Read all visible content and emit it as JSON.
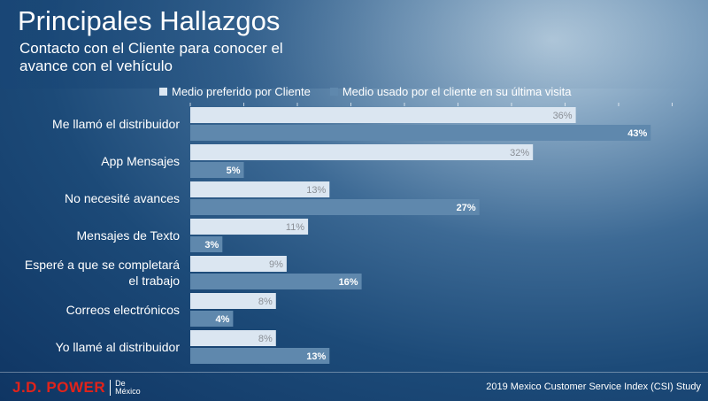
{
  "header": {
    "title": "Principales Hallazgos",
    "subtitle": "Contacto con el Cliente para conocer el avance con el vehículo"
  },
  "footer": {
    "logo_main": "J.D. POWER",
    "logo_sub_1": "De",
    "logo_sub_2": "México",
    "study": "2019 Mexico Customer Service Index (CSI) Study"
  },
  "colors": {
    "series_1": "#dbe6f1",
    "series_2": "#5f88ad",
    "label_series_1": "#8a8f96",
    "label_series_2": "#ffffff"
  },
  "chart_data": {
    "type": "bar",
    "orientation": "horizontal",
    "title": "Principales Hallazgos",
    "subtitle": "Contacto con el Cliente para conocer el avance con el vehículo",
    "xlim": [
      0,
      50
    ],
    "grid": false,
    "legend_position": "top",
    "categories": [
      [
        "Me llamó el distribuidor"
      ],
      [
        "App Mensajes"
      ],
      [
        "No necesité avances"
      ],
      [
        "Mensajes de Texto"
      ],
      [
        "Esperé a que se completará",
        "el trabajo"
      ],
      [
        "Correos electrónicos"
      ],
      [
        "Yo llamé al distribuidor"
      ]
    ],
    "series": [
      {
        "name": "Medio preferido por Cliente",
        "values": [
          36,
          32,
          13,
          11,
          9,
          8,
          8
        ],
        "labels": [
          "36%",
          "32%",
          "13%",
          "11%",
          "9%",
          "8%",
          "8%"
        ]
      },
      {
        "name": "Medio usado por el cliente en su última visita",
        "values": [
          43,
          5,
          27,
          3,
          16,
          4,
          13
        ],
        "labels": [
          "43%",
          "5%",
          "27%",
          "3%",
          "16%",
          "4%",
          "13%"
        ]
      }
    ]
  }
}
